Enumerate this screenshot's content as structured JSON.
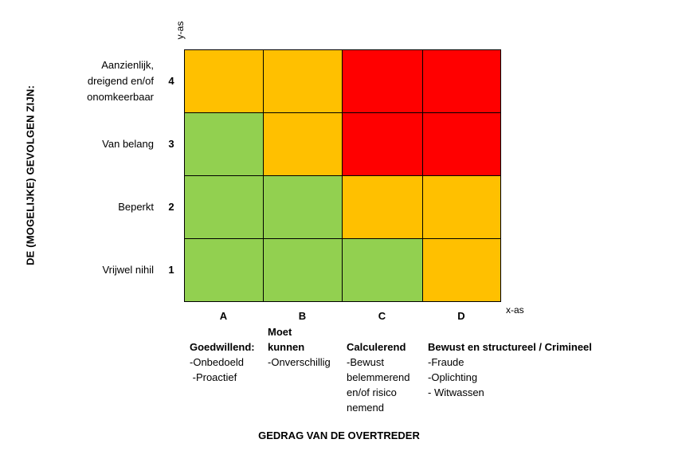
{
  "chart_data": {
    "type": "heatmap",
    "y_axis_title": "DE (MOGELIJKE) GEVOLGEN ZIJN:",
    "y_axis_tag": "y-as",
    "x_axis_tag": "x-as",
    "x_axis_title": "GEDRAG VAN DE OVERTREDER",
    "rows": [
      {
        "num": "4",
        "label": "Aanzienlijk,\ndreigend en/of\nonomkeerbaar"
      },
      {
        "num": "3",
        "label": "Van belang"
      },
      {
        "num": "2",
        "label": "Beperkt"
      },
      {
        "num": "1",
        "label": "Vrijwel nihil"
      }
    ],
    "columns": [
      {
        "letter": "A",
        "heading": "Goedwillend:",
        "items": [
          "-Onbedoeld",
          " -Proactief"
        ]
      },
      {
        "letter": "B",
        "heading": "Moet\nkunnen",
        "items": [
          "-Onverschillig"
        ]
      },
      {
        "letter": "C",
        "heading": "Calculerend",
        "items": [
          "-Bewust",
          "belemmerend",
          "en/of risico",
          "nemend"
        ]
      },
      {
        "letter": "D",
        "heading": "Bewust en structureel / Crimineel",
        "items": [
          "-Fraude",
          "-Oplichting",
          "- Witwassen"
        ]
      }
    ],
    "cells": [
      [
        "orange",
        "orange",
        "red",
        "red"
      ],
      [
        "green",
        "orange",
        "red",
        "red"
      ],
      [
        "green",
        "green",
        "orange",
        "orange"
      ],
      [
        "green",
        "green",
        "green",
        "orange"
      ]
    ],
    "colors": {
      "green": "#92d050",
      "orange": "#ffc000",
      "red": "#ff0000"
    }
  }
}
